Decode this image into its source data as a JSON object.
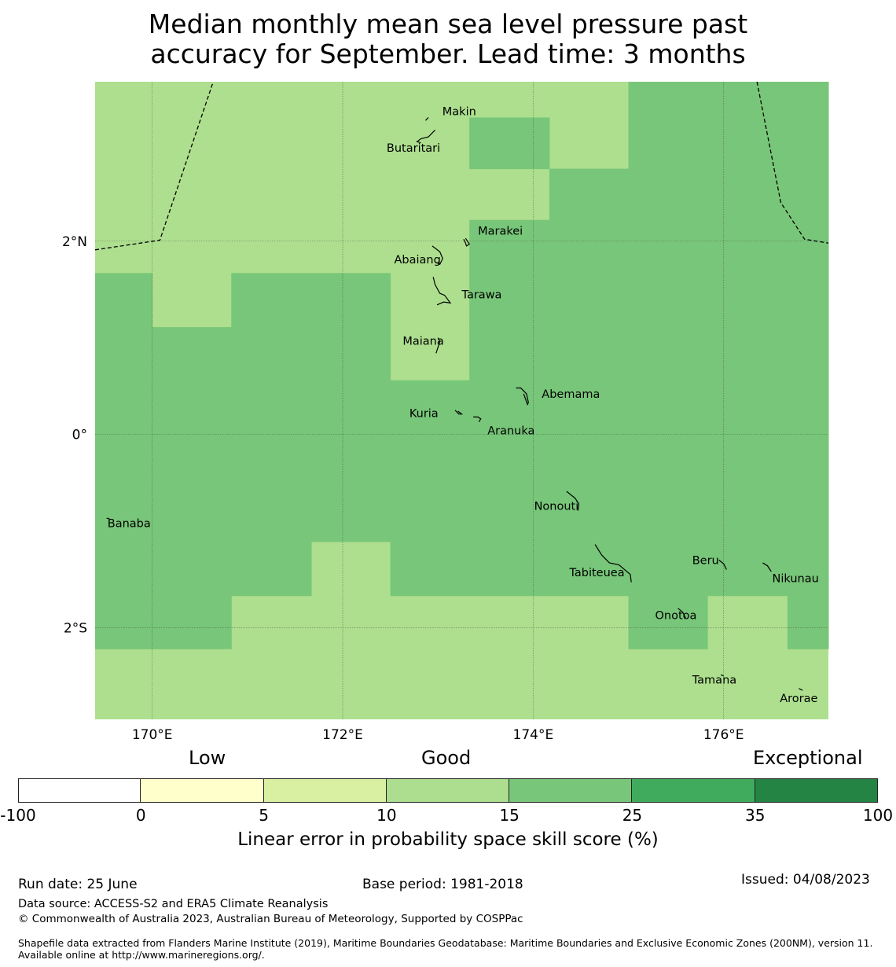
{
  "title": {
    "line1": "Median monthly mean sea level pressure past",
    "line2": "accuracy for September. Lead time: 3 months"
  },
  "map": {
    "lon_range": [
      169.4,
      177.1
    ],
    "lat_range": [
      -2.95,
      3.65
    ],
    "lon_ticks": [
      {
        "value": 170,
        "label": "170°E"
      },
      {
        "value": 172,
        "label": "172°E"
      },
      {
        "value": 174,
        "label": "174°E"
      },
      {
        "value": 176,
        "label": "176°E"
      }
    ],
    "lat_ticks": [
      {
        "value": 2,
        "label": "2°N"
      },
      {
        "value": 0,
        "label": "0°"
      },
      {
        "value": -2,
        "label": "2°S"
      }
    ],
    "grid": true,
    "colors": {
      "good_light": "#addf8e",
      "good_mid": "#78c679"
    },
    "regions_mid_15_25": [
      {
        "lon": [
          173.33,
          174.17
        ],
        "lat": [
          3.28,
          2.75
        ]
      },
      {
        "lon": [
          174.17,
          175.0
        ],
        "lat": [
          2.75,
          2.22
        ]
      },
      {
        "lon": [
          175.0,
          177.1
        ],
        "lat": [
          3.65,
          2.22
        ]
      },
      {
        "lon": [
          169.4,
          170.0
        ],
        "lat": [
          1.67,
          1.11
        ]
      },
      {
        "lon": [
          170.83,
          172.5
        ],
        "lat": [
          1.67,
          1.11
        ]
      },
      {
        "lon": [
          173.33,
          177.1
        ],
        "lat": [
          2.22,
          1.11
        ]
      },
      {
        "lon": [
          169.4,
          172.5
        ],
        "lat": [
          1.11,
          0.56
        ]
      },
      {
        "lon": [
          173.33,
          177.1
        ],
        "lat": [
          1.11,
          0.56
        ]
      },
      {
        "lon": [
          169.4,
          177.1
        ],
        "lat": [
          0.56,
          -1.11
        ]
      },
      {
        "lon": [
          169.4,
          171.67
        ],
        "lat": [
          -1.11,
          -1.67
        ]
      },
      {
        "lon": [
          172.5,
          177.1
        ],
        "lat": [
          -1.11,
          -1.67
        ]
      },
      {
        "lon": [
          169.4,
          170.83
        ],
        "lat": [
          -1.67,
          -2.22
        ]
      },
      {
        "lon": [
          175.0,
          175.83
        ],
        "lat": [
          -1.67,
          -2.22
        ]
      },
      {
        "lon": [
          176.67,
          177.1
        ],
        "lat": [
          -1.67,
          -2.22
        ]
      }
    ],
    "eez_lines": [
      [
        [
          169.4,
          1.91
        ],
        [
          170.08,
          2.01
        ],
        [
          170.64,
          3.65
        ]
      ],
      [
        [
          176.35,
          3.65
        ],
        [
          176.6,
          2.4
        ],
        [
          176.85,
          2.02
        ],
        [
          177.1,
          1.98
        ]
      ]
    ],
    "islands": [
      {
        "name": "Makin",
        "lon": 172.98,
        "lat": 3.33,
        "shape": [
          [
            172.87,
            3.25
          ],
          [
            172.9,
            3.28
          ]
        ],
        "label_offset": [
          8,
          -2
        ]
      },
      {
        "name": "Butaritari",
        "lon": 172.75,
        "lat": 3.03,
        "shape": [
          [
            172.97,
            3.15
          ],
          [
            172.9,
            3.08
          ],
          [
            172.82,
            3.06
          ],
          [
            172.78,
            3.03
          ],
          [
            172.82,
            3.02
          ]
        ],
        "label_offset": [
          -35,
          8
        ]
      },
      {
        "name": "Marakei",
        "lon": 173.42,
        "lat": 2.09,
        "shape": [
          [
            173.27,
            2.02
          ],
          [
            173.29,
            1.98
          ],
          [
            173.3,
            1.95
          ],
          [
            173.33,
            1.97
          ],
          [
            173.29,
            2.03
          ]
        ],
        "label_offset": [
          0,
          -2
        ]
      },
      {
        "name": "Abaiang",
        "lon": 172.54,
        "lat": 1.81,
        "shape": [
          [
            172.94,
            1.95
          ],
          [
            173.02,
            1.89
          ],
          [
            173.05,
            1.82
          ],
          [
            173.02,
            1.76
          ],
          [
            172.98,
            1.78
          ]
        ],
        "label_offset": [
          0,
          0
        ]
      },
      {
        "name": "Tarawa",
        "lon": 173.25,
        "lat": 1.45,
        "shape": [
          [
            172.95,
            1.63
          ],
          [
            172.97,
            1.55
          ],
          [
            173.02,
            1.46
          ],
          [
            173.07,
            1.44
          ],
          [
            173.13,
            1.36
          ],
          [
            173.06,
            1.37
          ],
          [
            172.99,
            1.34
          ]
        ],
        "label_offset": [
          0,
          0
        ]
      },
      {
        "name": "Maiana",
        "lon": 172.63,
        "lat": 0.97,
        "shape": [
          [
            173.0,
            1.0
          ],
          [
            173.02,
            0.96
          ],
          [
            173.0,
            0.9
          ],
          [
            172.98,
            0.84
          ]
        ],
        "label_offset": [
          0,
          0
        ]
      },
      {
        "name": "Abemama",
        "lon": 174.09,
        "lat": 0.42,
        "shape": [
          [
            173.82,
            0.48
          ],
          [
            173.87,
            0.48
          ],
          [
            173.93,
            0.42
          ],
          [
            173.95,
            0.33
          ],
          [
            173.94,
            0.31
          ],
          [
            173.9,
            0.42
          ]
        ],
        "label_offset": [
          0,
          0
        ]
      },
      {
        "name": "Kuria",
        "lon": 172.7,
        "lat": 0.22,
        "shape": [
          [
            173.18,
            0.25
          ],
          [
            173.22,
            0.21
          ],
          [
            173.25,
            0.21
          ],
          [
            173.21,
            0.24
          ]
        ],
        "label_offset": [
          0,
          0
        ]
      },
      {
        "name": "Aranuka",
        "lon": 173.52,
        "lat": 0.04,
        "shape": [
          [
            173.37,
            0.18
          ],
          [
            173.42,
            0.18
          ],
          [
            173.45,
            0.16
          ],
          [
            173.43,
            0.13
          ]
        ],
        "label_offset": [
          0,
          0
        ]
      },
      {
        "name": "Nonouti",
        "lon": 174.01,
        "lat": -0.74,
        "shape": [
          [
            174.35,
            -0.59
          ],
          [
            174.44,
            -0.66
          ],
          [
            174.48,
            -0.72
          ],
          [
            174.47,
            -0.79
          ]
        ],
        "label_offset": [
          0,
          0
        ]
      },
      {
        "name": "Banaba",
        "lon": 169.53,
        "lat": -0.92,
        "shape": [
          [
            169.52,
            -0.87
          ],
          [
            169.55,
            -0.87
          ]
        ],
        "label_offset": [
          0,
          0
        ]
      },
      {
        "name": "Tabiteuea",
        "lon": 174.38,
        "lat": -1.43,
        "shape": [
          [
            174.65,
            -1.14
          ],
          [
            174.72,
            -1.25
          ],
          [
            174.8,
            -1.33
          ],
          [
            174.9,
            -1.35
          ],
          [
            175.02,
            -1.45
          ],
          [
            175.03,
            -1.53
          ]
        ],
        "label_offset": [
          0,
          0
        ]
      },
      {
        "name": "Beru",
        "lon": 175.67,
        "lat": -1.3,
        "shape": [
          [
            175.95,
            -1.3
          ],
          [
            176.0,
            -1.34
          ],
          [
            176.03,
            -1.4
          ]
        ],
        "label_offset": [
          0,
          0
        ]
      },
      {
        "name": "Nikunau",
        "lon": 176.51,
        "lat": -1.49,
        "shape": [
          [
            176.41,
            -1.33
          ],
          [
            176.46,
            -1.36
          ],
          [
            176.5,
            -1.42
          ]
        ],
        "label_offset": [
          0,
          0
        ]
      },
      {
        "name": "Onotoa",
        "lon": 175.28,
        "lat": -1.87,
        "shape": [
          [
            175.52,
            -1.8
          ],
          [
            175.57,
            -1.84
          ],
          [
            175.6,
            -1.9
          ]
        ],
        "label_offset": [
          0,
          0
        ]
      },
      {
        "name": "Tamana",
        "lon": 175.67,
        "lat": -2.54,
        "shape": [
          [
            175.97,
            -2.49
          ],
          [
            176.0,
            -2.5
          ]
        ],
        "label_offset": [
          0,
          0
        ]
      },
      {
        "name": "Arorae",
        "lon": 176.59,
        "lat": -2.73,
        "shape": [
          [
            176.79,
            -2.63
          ],
          [
            176.83,
            -2.65
          ]
        ],
        "label_offset": [
          0,
          0
        ]
      }
    ]
  },
  "legend": {
    "categories": [
      "Low",
      "Good",
      "Exceptional"
    ],
    "bins": [
      {
        "from": "-100",
        "to": "0",
        "color": "#ffffff"
      },
      {
        "from": "0",
        "to": "5",
        "color": "#ffffcc"
      },
      {
        "from": "5",
        "to": "10",
        "color": "#d9f0a3"
      },
      {
        "from": "10",
        "to": "15",
        "color": "#addd8e"
      },
      {
        "from": "15",
        "to": "25",
        "color": "#78c679"
      },
      {
        "from": "25",
        "to": "35",
        "color": "#41ab5d"
      },
      {
        "from": "35",
        "to": "100",
        "color": "#238443"
      }
    ],
    "ticks": [
      "-100",
      "0",
      "5",
      "10",
      "15",
      "25",
      "35",
      "100"
    ],
    "label": "Linear error in probability space skill score (%)"
  },
  "footer": {
    "run_date": "Run date: 25 June",
    "base_period": "Base period: 1981-2018",
    "issued": "Issued: 04/08/2023",
    "data_source": "Data source: ACCESS-S2 and ERA5 Climate Reanalysis",
    "copyright": "© Commonwealth of Australia 2023, Australian Bureau of Meteorology, Supported by COSPPac",
    "shapefile": "Shapefile data extracted from Flanders Marine Institute (2019), Maritime Boundaries Geodatabase: Maritime Boundaries and Exclusive Economic Zones (200NM), version 11. Available online at http://www.marineregions.org/."
  }
}
